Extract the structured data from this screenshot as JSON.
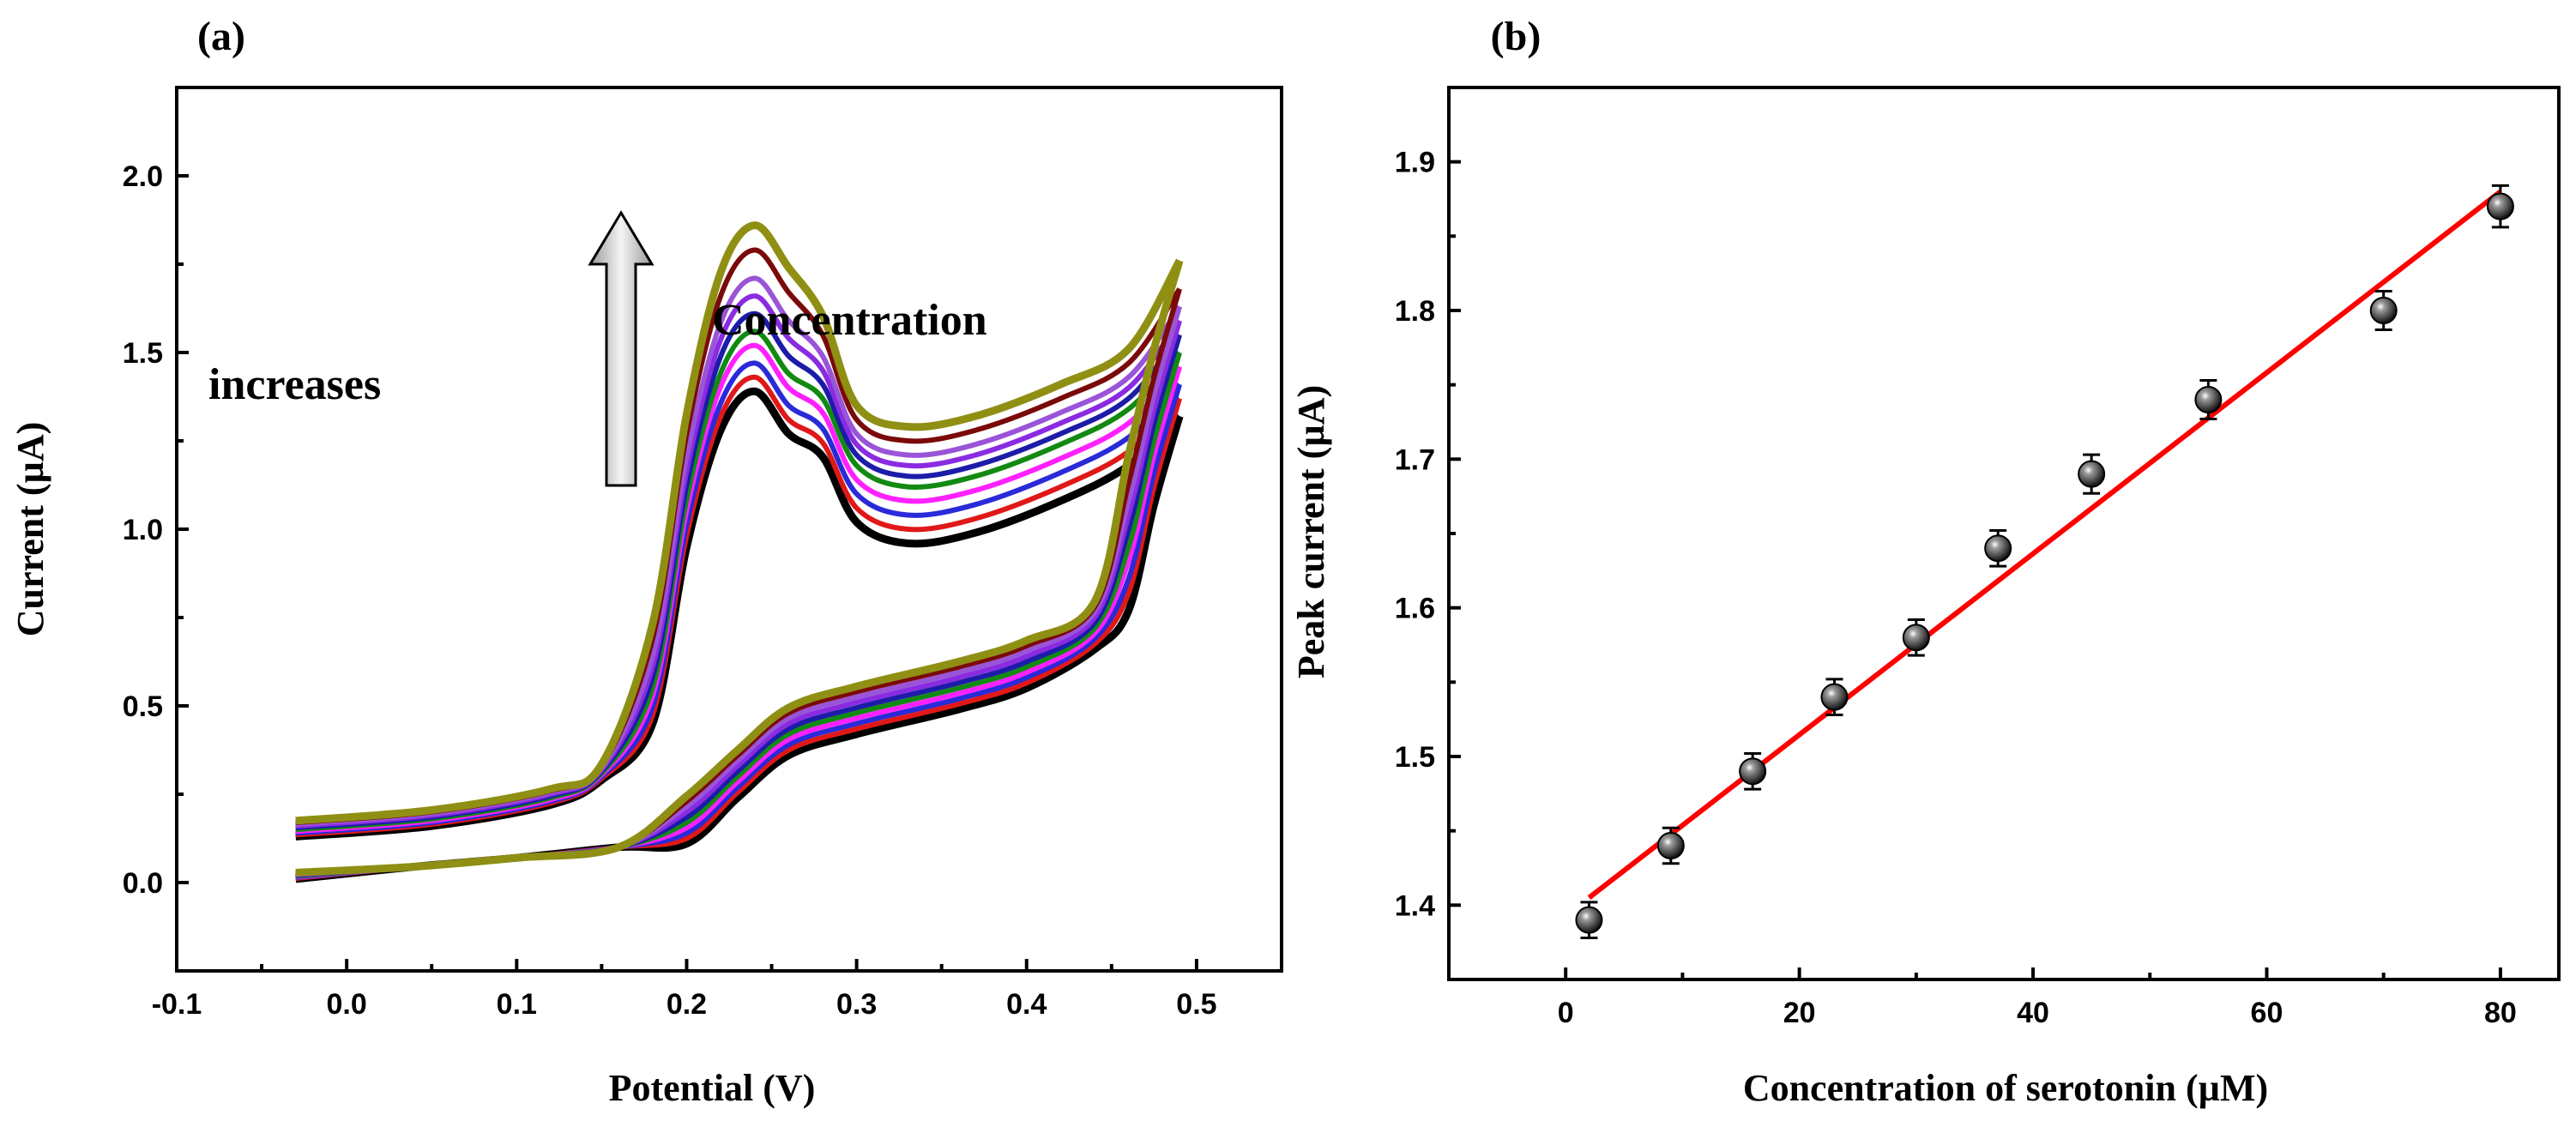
{
  "chart_data": [
    {
      "panel_label": "(a)",
      "type": "line",
      "title": "",
      "xlabel": "Potential (V)",
      "ylabel": "Current (µA)",
      "xlim": [
        -0.1,
        0.55
      ],
      "ylim": [
        -0.25,
        2.25
      ],
      "xticks": [
        -0.1,
        0.0,
        0.1,
        0.2,
        0.3,
        0.4,
        0.5
      ],
      "xtick_labels": [
        "-0.1",
        "0.0",
        "0.1",
        "0.2",
        "0.3",
        "0.4",
        "0.5"
      ],
      "yticks": [
        0.0,
        0.5,
        1.0,
        1.5,
        2.0
      ],
      "ytick_labels": [
        "0.0",
        "0.5",
        "1.0",
        "1.5",
        "2.0"
      ],
      "annotation": {
        "line1": "Concentration",
        "line2": "increases",
        "arrow": "up"
      },
      "series": [
        {
          "color": "#000000",
          "peak_current": 1.39,
          "valley_current": 0.96,
          "end_current": 1.32,
          "start_current": 0.13,
          "return_start": 0.01,
          "shoulder": 0.44
        },
        {
          "color": "#e01818",
          "peak_current": 1.43,
          "valley_current": 1.0,
          "end_current": 1.37,
          "start_current": 0.135,
          "return_start": 0.012,
          "shoulder": 0.455
        },
        {
          "color": "#2a2ad8",
          "peak_current": 1.47,
          "valley_current": 1.04,
          "end_current": 1.41,
          "start_current": 0.14,
          "return_start": 0.014,
          "shoulder": 0.47
        },
        {
          "color": "#ff20ff",
          "peak_current": 1.52,
          "valley_current": 1.08,
          "end_current": 1.46,
          "start_current": 0.145,
          "return_start": 0.016,
          "shoulder": 0.485
        },
        {
          "color": "#128a12",
          "peak_current": 1.56,
          "valley_current": 1.12,
          "end_current": 1.5,
          "start_current": 0.15,
          "return_start": 0.018,
          "shoulder": 0.5
        },
        {
          "color": "#1c1ca8",
          "peak_current": 1.61,
          "valley_current": 1.15,
          "end_current": 1.55,
          "start_current": 0.155,
          "return_start": 0.02,
          "shoulder": 0.515
        },
        {
          "color": "#8a2be2",
          "peak_current": 1.66,
          "valley_current": 1.18,
          "end_current": 1.59,
          "start_current": 0.16,
          "return_start": 0.022,
          "shoulder": 0.53
        },
        {
          "color": "#9a54d8",
          "peak_current": 1.71,
          "valley_current": 1.21,
          "end_current": 1.63,
          "start_current": 0.165,
          "return_start": 0.024,
          "shoulder": 0.545
        },
        {
          "color": "#7a0a0a",
          "peak_current": 1.79,
          "valley_current": 1.25,
          "end_current": 1.68,
          "start_current": 0.17,
          "return_start": 0.026,
          "shoulder": 0.56
        },
        {
          "color": "#8f8f14",
          "peak_current": 1.86,
          "valley_current": 1.29,
          "end_current": 1.76,
          "start_current": 0.175,
          "return_start": 0.028,
          "shoulder": 0.575
        }
      ]
    },
    {
      "panel_label": "(b)",
      "type": "scatter",
      "title": "",
      "xlabel": "Concentration of serotonin (µM)",
      "ylabel": "Peak current (µA)",
      "xlim": [
        -10,
        85
      ],
      "ylim": [
        1.35,
        1.95
      ],
      "xticks": [
        0,
        20,
        40,
        60,
        80
      ],
      "xtick_labels": [
        "0",
        "20",
        "40",
        "60",
        "80"
      ],
      "yticks": [
        1.4,
        1.5,
        1.6,
        1.7,
        1.8,
        1.9
      ],
      "ytick_labels": [
        "1.4",
        "1.5",
        "1.6",
        "1.7",
        "1.8",
        "1.9"
      ],
      "x": [
        2,
        9,
        16,
        23,
        30,
        37,
        45,
        55,
        70,
        80
      ],
      "y": [
        1.39,
        1.44,
        1.49,
        1.54,
        1.58,
        1.64,
        1.69,
        1.74,
        1.8,
        1.87
      ],
      "error": [
        0.012,
        0.012,
        0.012,
        0.012,
        0.012,
        0.012,
        0.013,
        0.013,
        0.013,
        0.014
      ],
      "fit": {
        "x": [
          2,
          80
        ],
        "y": [
          1.405,
          1.88
        ],
        "color": "#ff0000"
      },
      "marker_color": "#111111"
    }
  ]
}
